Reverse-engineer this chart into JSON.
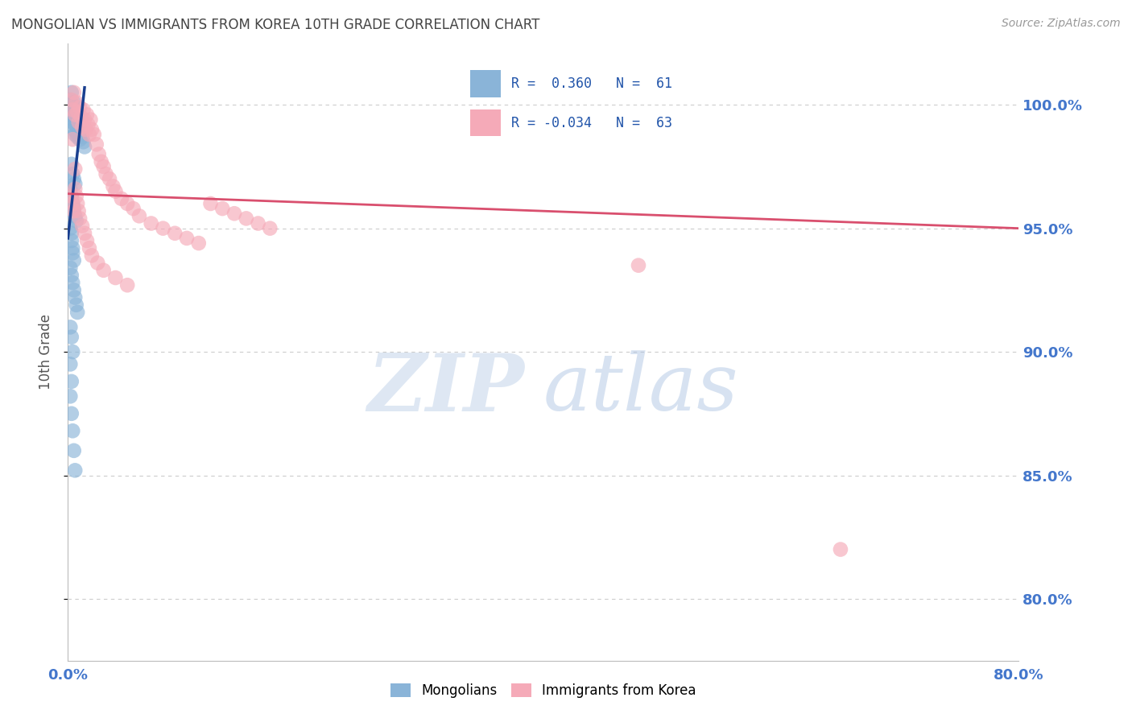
{
  "title": "MONGOLIAN VS IMMIGRANTS FROM KOREA 10TH GRADE CORRELATION CHART",
  "source": "Source: ZipAtlas.com",
  "ylabel": "10th Grade",
  "y_tick_labels": [
    "100.0%",
    "95.0%",
    "90.0%",
    "85.0%",
    "80.0%"
  ],
  "y_tick_values": [
    1.0,
    0.95,
    0.9,
    0.85,
    0.8
  ],
  "xlim": [
    0.0,
    0.8
  ],
  "ylim": [
    0.775,
    1.025
  ],
  "blue_color": "#8ab4d8",
  "pink_color": "#f5aab8",
  "trend_blue": "#1a3f8f",
  "trend_pink": "#d94f6e",
  "grid_color": "#cccccc",
  "title_color": "#444444",
  "axis_label_color": "#4477cc",
  "blue_scatter_x": [
    0.002,
    0.003,
    0.003,
    0.004,
    0.004,
    0.004,
    0.005,
    0.005,
    0.005,
    0.005,
    0.006,
    0.006,
    0.006,
    0.006,
    0.007,
    0.007,
    0.007,
    0.008,
    0.008,
    0.008,
    0.009,
    0.009,
    0.01,
    0.01,
    0.011,
    0.012,
    0.013,
    0.014,
    0.003,
    0.004,
    0.005,
    0.006,
    0.002,
    0.003,
    0.004,
    0.005,
    0.006,
    0.007,
    0.002,
    0.003,
    0.003,
    0.004,
    0.004,
    0.005,
    0.002,
    0.003,
    0.004,
    0.005,
    0.006,
    0.007,
    0.008,
    0.002,
    0.003,
    0.004,
    0.002,
    0.003,
    0.002,
    0.003,
    0.004,
    0.005,
    0.006
  ],
  "blue_scatter_y": [
    1.002,
    1.005,
    0.998,
    1.0,
    0.996,
    0.993,
    1.001,
    0.997,
    0.994,
    0.99,
    0.999,
    0.995,
    0.992,
    0.988,
    0.997,
    0.993,
    0.989,
    0.995,
    0.991,
    0.987,
    0.993,
    0.988,
    0.991,
    0.986,
    0.989,
    0.987,
    0.985,
    0.983,
    0.976,
    0.972,
    0.97,
    0.968,
    0.966,
    0.963,
    0.96,
    0.958,
    0.955,
    0.953,
    0.95,
    0.948,
    0.945,
    0.942,
    0.94,
    0.937,
    0.934,
    0.931,
    0.928,
    0.925,
    0.922,
    0.919,
    0.916,
    0.91,
    0.906,
    0.9,
    0.895,
    0.888,
    0.882,
    0.875,
    0.868,
    0.86,
    0.852
  ],
  "pink_scatter_x": [
    0.003,
    0.004,
    0.005,
    0.006,
    0.007,
    0.008,
    0.009,
    0.01,
    0.011,
    0.012,
    0.013,
    0.014,
    0.015,
    0.016,
    0.017,
    0.018,
    0.019,
    0.02,
    0.022,
    0.024,
    0.026,
    0.028,
    0.03,
    0.032,
    0.035,
    0.038,
    0.04,
    0.045,
    0.05,
    0.055,
    0.06,
    0.07,
    0.08,
    0.09,
    0.1,
    0.11,
    0.12,
    0.13,
    0.14,
    0.15,
    0.16,
    0.17,
    0.003,
    0.004,
    0.005,
    0.006,
    0.007,
    0.008,
    0.009,
    0.01,
    0.012,
    0.014,
    0.016,
    0.018,
    0.02,
    0.025,
    0.03,
    0.04,
    0.05,
    0.48,
    0.65,
    0.004,
    0.006
  ],
  "pink_scatter_y": [
    1.002,
    0.998,
    1.005,
    0.996,
    1.001,
    0.997,
    0.993,
    0.999,
    0.995,
    0.991,
    0.998,
    0.994,
    0.99,
    0.996,
    0.992,
    0.988,
    0.994,
    0.99,
    0.988,
    0.984,
    0.98,
    0.977,
    0.975,
    0.972,
    0.97,
    0.967,
    0.965,
    0.962,
    0.96,
    0.958,
    0.955,
    0.952,
    0.95,
    0.948,
    0.946,
    0.944,
    0.96,
    0.958,
    0.956,
    0.954,
    0.952,
    0.95,
    0.963,
    0.96,
    0.957,
    0.966,
    0.963,
    0.96,
    0.957,
    0.954,
    0.951,
    0.948,
    0.945,
    0.942,
    0.939,
    0.936,
    0.933,
    0.93,
    0.927,
    0.935,
    0.82,
    0.986,
    0.974
  ],
  "blue_trend_x": [
    0.0,
    0.014
  ],
  "blue_trend_y": [
    0.946,
    1.007
  ],
  "pink_trend_x": [
    0.0,
    0.8
  ],
  "pink_trend_y": [
    0.964,
    0.95
  ],
  "legend_items": [
    {
      "label": "R =  0.360   N =  61",
      "color": "#8ab4d8"
    },
    {
      "label": "R = -0.034   N =  63",
      "color": "#f5aab8"
    }
  ],
  "bottom_legend": [
    "Mongolians",
    "Immigrants from Korea"
  ],
  "bottom_legend_colors": [
    "#8ab4d8",
    "#f5aab8"
  ]
}
